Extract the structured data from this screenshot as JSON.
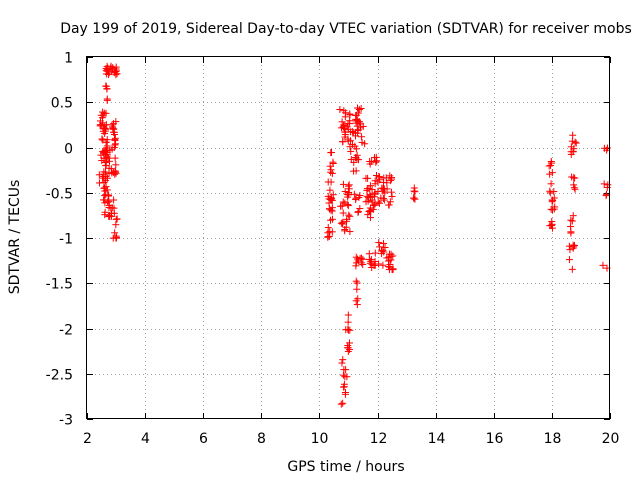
{
  "chart_data": {
    "type": "scatter",
    "title": "Day 199 of 2019, Sidereal Day-to-day VTEC variation (SDTVAR) for receiver mobs",
    "xlabel": "GPS time / hours",
    "ylabel": "SDTVAR / TECUs",
    "xlim": [
      2,
      20
    ],
    "ylim": [
      -3,
      1
    ],
    "xticks": [
      "2",
      "4",
      "6",
      "8",
      "10",
      "12",
      "14",
      "16",
      "18",
      "20"
    ],
    "yticks": [
      "1",
      "0.5",
      "0",
      "-0.5",
      "-1",
      "-1.5",
      "-2",
      "-2.5",
      "-3"
    ],
    "xtick_values": [
      2,
      4,
      6,
      8,
      10,
      12,
      14,
      16,
      18,
      20
    ],
    "ytick_values": [
      1,
      0.5,
      0,
      -0.5,
      -1,
      -1.5,
      -2,
      -2.5,
      -3
    ],
    "grid": true,
    "marker": "+",
    "color": "#ff0000",
    "clusters": [
      {
        "x": [
          2.4,
          2.6
        ],
        "y": [
          -0.4,
          -0.25
        ],
        "n": 4
      },
      {
        "x": [
          2.45,
          2.7
        ],
        "y": [
          -0.1,
          0.4
        ],
        "n": 40
      },
      {
        "x": [
          2.5,
          2.75
        ],
        "y": [
          -0.55,
          -0.1
        ],
        "n": 22
      },
      {
        "x": [
          2.55,
          2.65
        ],
        "y": [
          -0.75,
          -0.4
        ],
        "n": 8
      },
      {
        "x": [
          2.6,
          2.7
        ],
        "y": [
          0.5,
          0.8
        ],
        "n": 6
      },
      {
        "x": [
          2.65,
          3.05
        ],
        "y": [
          0.8,
          0.9
        ],
        "n": 22
      },
      {
        "x": [
          2.75,
          3.0
        ],
        "y": [
          -0.3,
          0.25
        ],
        "n": 26
      },
      {
        "x": [
          2.7,
          2.95
        ],
        "y": [
          -0.8,
          -0.55
        ],
        "n": 16
      },
      {
        "x": [
          2.85,
          3.05
        ],
        "y": [
          -1.05,
          -0.75
        ],
        "n": 8
      },
      {
        "x": [
          2.9,
          3.0
        ],
        "y": [
          0.15,
          0.3
        ],
        "n": 4
      },
      {
        "x": [
          10.25,
          10.45
        ],
        "y": [
          -1.0,
          -0.8
        ],
        "n": 8
      },
      {
        "x": [
          10.3,
          10.45
        ],
        "y": [
          -0.8,
          -0.3
        ],
        "n": 12
      },
      {
        "x": [
          10.35,
          10.5
        ],
        "y": [
          -0.3,
          -0.05
        ],
        "n": 8
      },
      {
        "x": [
          10.35,
          10.5
        ],
        "y": [
          -0.6,
          -0.5
        ],
        "n": 6
      },
      {
        "x": [
          10.7,
          11.05
        ],
        "y": [
          0.2,
          0.42
        ],
        "n": 18
      },
      {
        "x": [
          10.8,
          11.0
        ],
        "y": [
          -0.05,
          0.2
        ],
        "n": 8
      },
      {
        "x": [
          10.7,
          11.05
        ],
        "y": [
          -0.95,
          -0.6
        ],
        "n": 18
      },
      {
        "x": [
          10.8,
          11.05
        ],
        "y": [
          -0.55,
          -0.4
        ],
        "n": 10
      },
      {
        "x": [
          10.75,
          10.95
        ],
        "y": [
          -2.85,
          -2.3
        ],
        "n": 14
      },
      {
        "x": [
          10.9,
          11.05
        ],
        "y": [
          -2.3,
          -1.85
        ],
        "n": 12
      },
      {
        "x": [
          11.05,
          11.3
        ],
        "y": [
          -0.15,
          0.2
        ],
        "n": 12
      },
      {
        "x": [
          11.2,
          11.45
        ],
        "y": [
          0.2,
          0.45
        ],
        "n": 14
      },
      {
        "x": [
          11.15,
          11.35
        ],
        "y": [
          -0.35,
          -0.05
        ],
        "n": 8
      },
      {
        "x": [
          11.2,
          11.4
        ],
        "y": [
          -0.75,
          -0.45
        ],
        "n": 8
      },
      {
        "x": [
          11.25,
          11.5
        ],
        "y": [
          -1.35,
          -1.2
        ],
        "n": 10
      },
      {
        "x": [
          11.25,
          11.35
        ],
        "y": [
          -1.75,
          -1.45
        ],
        "n": 6
      },
      {
        "x": [
          11.3,
          11.6
        ],
        "y": [
          0.0,
          0.25
        ],
        "n": 8
      },
      {
        "x": [
          11.6,
          12.5
        ],
        "y": [
          -0.65,
          -0.3
        ],
        "n": 55
      },
      {
        "x": [
          11.6,
          11.85
        ],
        "y": [
          -0.8,
          -0.65
        ],
        "n": 8
      },
      {
        "x": [
          11.7,
          12.0
        ],
        "y": [
          -0.2,
          -0.05
        ],
        "n": 8
      },
      {
        "x": [
          11.7,
          12.55
        ],
        "y": [
          -1.35,
          -1.15
        ],
        "n": 30
      },
      {
        "x": [
          12.0,
          12.3
        ],
        "y": [
          -1.15,
          -1.05
        ],
        "n": 6
      },
      {
        "x": [
          13.2,
          13.3
        ],
        "y": [
          -0.6,
          -0.4
        ],
        "n": 6
      },
      {
        "x": [
          17.9,
          18.1
        ],
        "y": [
          -0.3,
          -0.15
        ],
        "n": 6
      },
      {
        "x": [
          17.9,
          18.1
        ],
        "y": [
          -0.7,
          -0.4
        ],
        "n": 12
      },
      {
        "x": [
          17.9,
          18.05
        ],
        "y": [
          -0.9,
          -0.8
        ],
        "n": 6
      },
      {
        "x": [
          18.6,
          18.85
        ],
        "y": [
          -0.1,
          0.15
        ],
        "n": 10
      },
      {
        "x": [
          18.65,
          18.8
        ],
        "y": [
          -0.5,
          -0.3
        ],
        "n": 6
      },
      {
        "x": [
          18.6,
          18.75
        ],
        "y": [
          -0.95,
          -0.75
        ],
        "n": 6
      },
      {
        "x": [
          18.6,
          18.8
        ],
        "y": [
          -1.35,
          -1.05
        ],
        "n": 8
      },
      {
        "x": [
          19.75,
          19.95
        ],
        "y": [
          -0.05,
          0.0
        ],
        "n": 3
      },
      {
        "x": [
          19.75,
          19.95
        ],
        "y": [
          -0.45,
          -0.4
        ],
        "n": 3
      },
      {
        "x": [
          19.75,
          19.9
        ],
        "y": [
          -0.55,
          -0.5
        ],
        "n": 2
      },
      {
        "x": [
          19.75,
          19.9
        ],
        "y": [
          -1.35,
          -1.3
        ],
        "n": 2
      }
    ]
  }
}
